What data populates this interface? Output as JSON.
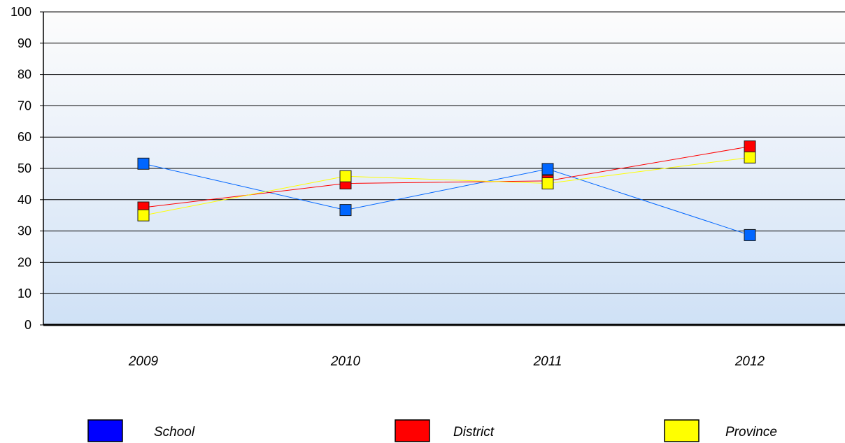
{
  "chart_data": {
    "type": "line",
    "title": "",
    "xlabel": "",
    "ylabel": "",
    "categories": [
      "2009",
      "2010",
      "2011",
      "2012"
    ],
    "ylim": [
      0,
      100
    ],
    "yticks": [
      0,
      10,
      20,
      30,
      40,
      50,
      60,
      70,
      80,
      90,
      100
    ],
    "grid": "horizontal",
    "legend_position": "bottom",
    "series": [
      {
        "name": "School",
        "values": [
          51.5,
          36.7,
          49.8,
          28.7
        ],
        "color": "#0066ff",
        "marker_color": "#0066ff"
      },
      {
        "name": "District",
        "values": [
          37.5,
          45.2,
          46.0,
          57.0
        ],
        "color": "#ff0000",
        "marker_color": "#ff0000"
      },
      {
        "name": "Province",
        "values": [
          35.0,
          47.5,
          45.2,
          53.5
        ],
        "color": "#ffff00",
        "marker_color": "#ffff00"
      }
    ],
    "legend_swatch_colors": [
      "#0000ff",
      "#ff0000",
      "#ffff00"
    ]
  }
}
